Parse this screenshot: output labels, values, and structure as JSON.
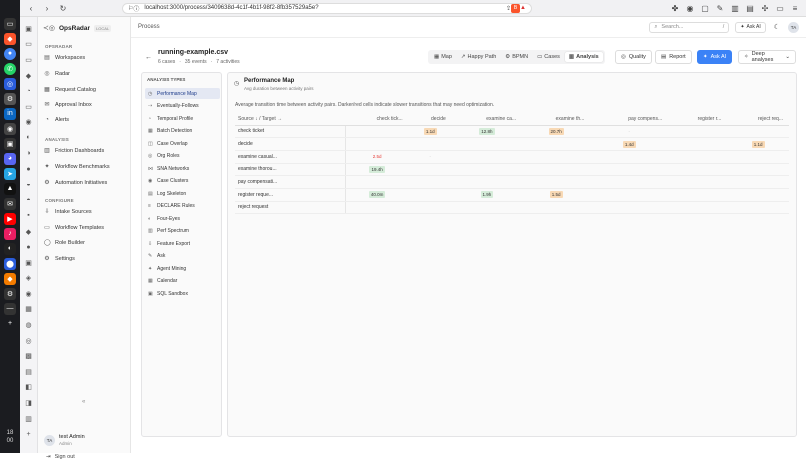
{
  "browser": {
    "url": "localhost:3000/process/3409638d-4c1f-4b1f-98f2-8fb357529a5e?"
  },
  "dock": {
    "clock": [
      "18",
      "00"
    ]
  },
  "app": {
    "name": "OpsRadar",
    "badge": "LOCAL"
  },
  "sidebar": {
    "sections": [
      {
        "label": "OPSRADAR",
        "items": [
          {
            "icon": "workspaces-icon",
            "label": "Workspaces"
          },
          {
            "icon": "radar-icon",
            "label": "Radar"
          },
          {
            "icon": "catalog-icon",
            "label": "Request Catalog"
          },
          {
            "icon": "inbox-icon",
            "label": "Approval Inbox"
          },
          {
            "icon": "bell-icon",
            "label": "Alerts"
          }
        ]
      },
      {
        "label": "ANALYSIS",
        "items": [
          {
            "icon": "friction-icon",
            "label": "Friction Dashboards"
          },
          {
            "icon": "benchmark-icon",
            "label": "Workflow Benchmarks"
          },
          {
            "icon": "initiatives-icon",
            "label": "Automation Initiatives"
          }
        ]
      },
      {
        "label": "CONFIGURE",
        "items": [
          {
            "icon": "intake-icon",
            "label": "Intake Sources"
          },
          {
            "icon": "templates-icon",
            "label": "Workflow Templates"
          },
          {
            "icon": "role-icon",
            "label": "Role Builder"
          },
          {
            "icon": "gear-icon",
            "label": "Settings"
          }
        ]
      }
    ],
    "collapse": "«",
    "user": {
      "initials": "TA",
      "name": "test Admin",
      "role": "Admin"
    },
    "signout": "Sign out"
  },
  "header": {
    "breadcrumb": "Process",
    "search_placeholder": "Search...",
    "search_shortcut": "/",
    "ask_ai": "Ask AI",
    "avatar": "TA"
  },
  "file": {
    "name": "running-example.csv",
    "cases": "6 cases",
    "events": "35 events",
    "activities": "7 activities"
  },
  "tabs": [
    {
      "label": "Map",
      "icon": "map-icon"
    },
    {
      "label": "Happy Path",
      "icon": "path-icon"
    },
    {
      "label": "BPMN",
      "icon": "bpmn-icon"
    },
    {
      "label": "Cases",
      "icon": "cases-icon"
    },
    {
      "label": "Analysis",
      "icon": "analysis-icon",
      "active": true
    }
  ],
  "actions": {
    "quality": "Quality",
    "report": "Report",
    "ask_ai": "Ask AI",
    "deep": "Deep analyses"
  },
  "analysis_types": {
    "title": "ANALYSIS TYPES",
    "items": [
      "Performance Map",
      "Eventually-Follows",
      "Temporal Profile",
      "Batch Detection",
      "Case Overlap",
      "Org Roles",
      "SNA Networks",
      "Case Clusters",
      "Log Skeleton",
      "DECLARE Rules",
      "Four-Eyes",
      "Perf Spectrum",
      "Feature Export",
      "Ask",
      "Agent Mining",
      "Calendar",
      "SQL Sandbox"
    ],
    "active": 0
  },
  "perfmap": {
    "title": "Performance Map",
    "subtitle": "Avg duration between activity pairs",
    "description": "Average transition time between activity pairs. Darker/red cells indicate slower transitions that may need optimization.",
    "corner": "Source ↓ / Target →",
    "columns": [
      "check tick...",
      "decide",
      "examine ca...",
      "examine th...",
      "pay compens...",
      "register r...",
      "reject req..."
    ],
    "rows": [
      {
        "label": "check ticket",
        "cells": [
          "",
          "1.1d",
          "12.8h",
          "20.7h",
          "-",
          "",
          ""
        ]
      },
      {
        "label": "decide",
        "cells": [
          "",
          "",
          "",
          "",
          "1.4d",
          "",
          "1.1d"
        ]
      },
      {
        "label": "examine casual...",
        "cells": [
          "2.5d",
          "-",
          "",
          "",
          "",
          "",
          ""
        ]
      },
      {
        "label": "examine thorou...",
        "cells": [
          "19.4h",
          "",
          "",
          "",
          "",
          "",
          ""
        ]
      },
      {
        "label": "pay compensati...",
        "cells": [
          "",
          "",
          "",
          "",
          "",
          "",
          ""
        ]
      },
      {
        "label": "register reque...",
        "cells": [
          "40.0m",
          "",
          "1.9h",
          "1.5d",
          "",
          "",
          ""
        ]
      },
      {
        "label": "reject request",
        "cells": [
          "",
          "",
          "",
          "",
          "",
          "",
          ""
        ]
      }
    ]
  },
  "colors": {
    "accent": "#3b82f6",
    "slow": "#f8d9b5",
    "fast": "#d5ecd9",
    "alert": "#e53935"
  }
}
